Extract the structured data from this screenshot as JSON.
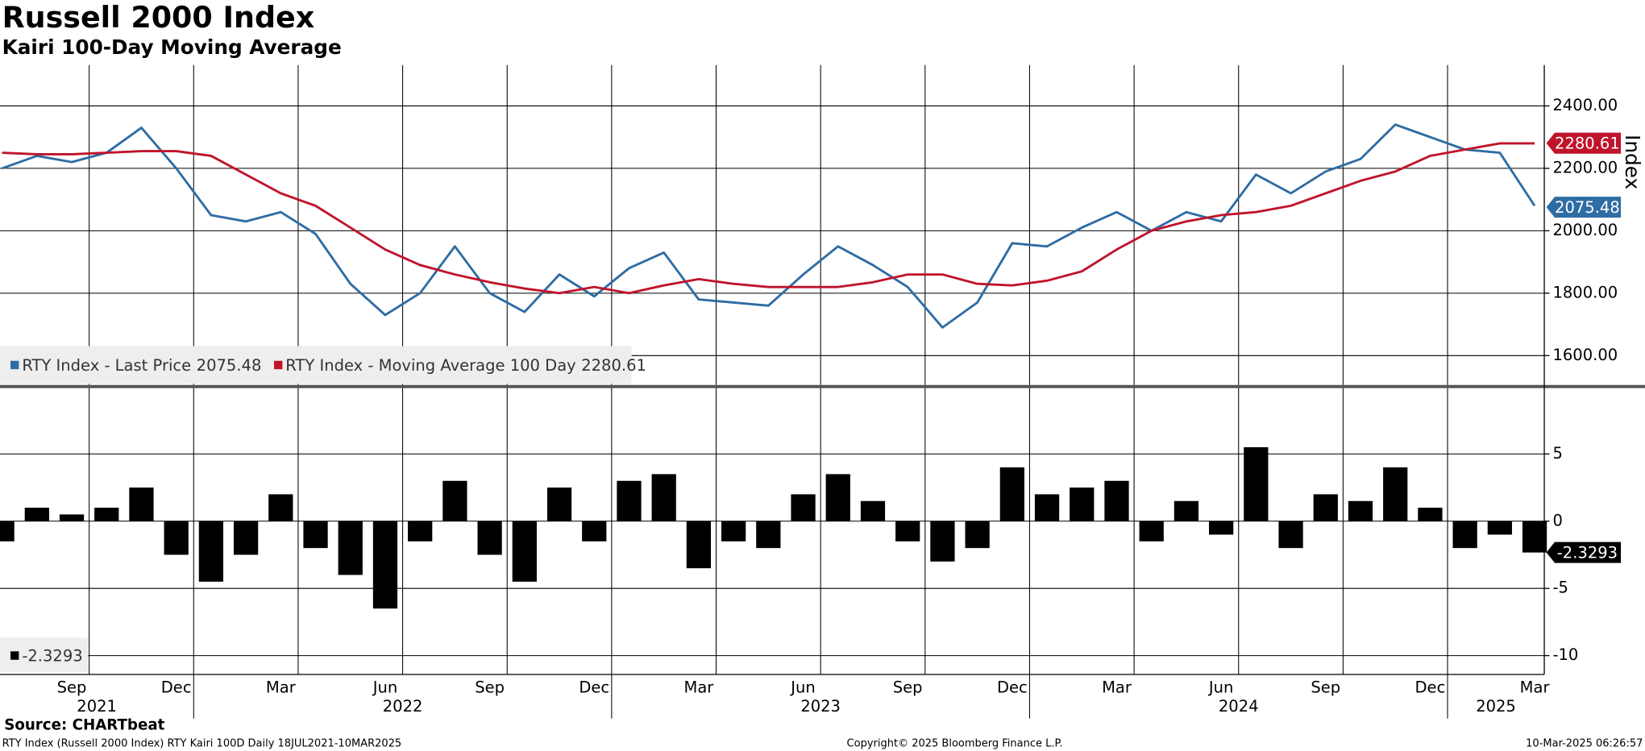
{
  "header": {
    "title": "Russell 2000 Index",
    "subtitle": "Kairi 100-Day Moving Average"
  },
  "footer": {
    "source": "Source: CHARTbeat",
    "description": "RTY Index (Russell 2000 Index) RTY Kairi 100D  Daily 18JUL2021-10MAR2025",
    "copyright": "Copyright© 2025 Bloomberg Finance L.P.",
    "timestamp": "10-Mar-2025 06:26:57"
  },
  "chart_data": [
    {
      "type": "line",
      "y_label": "Index",
      "x": [
        "2021-07",
        "2021-08",
        "2021-09",
        "2021-10",
        "2021-11",
        "2021-12",
        "2022-01",
        "2022-02",
        "2022-03",
        "2022-04",
        "2022-05",
        "2022-06",
        "2022-07",
        "2022-08",
        "2022-09",
        "2022-10",
        "2022-11",
        "2022-12",
        "2023-01",
        "2023-02",
        "2023-03",
        "2023-04",
        "2023-05",
        "2023-06",
        "2023-07",
        "2023-08",
        "2023-09",
        "2023-10",
        "2023-11",
        "2023-12",
        "2024-01",
        "2024-02",
        "2024-03",
        "2024-04",
        "2024-05",
        "2024-06",
        "2024-07",
        "2024-08",
        "2024-09",
        "2024-10",
        "2024-11",
        "2024-12",
        "2025-01",
        "2025-02",
        "2025-03"
      ],
      "series": [
        {
          "name": "RTY Index - Last Price",
          "color": "#2e6ca4",
          "last": 2075.48,
          "values": [
            2200,
            2240,
            2220,
            2250,
            2330,
            2200,
            2050,
            2030,
            2060,
            1990,
            1830,
            1730,
            1800,
            1950,
            1800,
            1740,
            1860,
            1790,
            1880,
            1930,
            1780,
            1770,
            1760,
            1860,
            1950,
            1890,
            1820,
            1690,
            1770,
            1960,
            1950,
            2010,
            2060,
            2000,
            2060,
            2030,
            2180,
            2120,
            2190,
            2230,
            2340,
            2300,
            2260,
            2250,
            2080
          ]
        },
        {
          "name": "RTY Index - Moving Average 100 Day",
          "color": "#c0142b",
          "last": 2280.61,
          "values": [
            2250,
            2245,
            2245,
            2250,
            2255,
            2255,
            2240,
            2180,
            2120,
            2080,
            2010,
            1940,
            1890,
            1860,
            1835,
            1815,
            1800,
            1820,
            1800,
            1825,
            1845,
            1830,
            1820,
            1820,
            1820,
            1835,
            1860,
            1860,
            1830,
            1825,
            1840,
            1870,
            1940,
            2000,
            2030,
            2050,
            2060,
            2080,
            2120,
            2160,
            2190,
            2240,
            2260,
            2280,
            2280
          ]
        }
      ],
      "ylim": [
        1506,
        2531
      ],
      "yticks": [
        {
          "value": 1600,
          "label": "1600.00"
        },
        {
          "value": 1800,
          "label": "1800.00"
        },
        {
          "value": 2000,
          "label": "2000.00"
        },
        {
          "value": 2200,
          "label": "2200.00"
        },
        {
          "value": 2400,
          "label": "2400.00"
        }
      ],
      "grid": true,
      "legend": "bottom-left"
    },
    {
      "type": "bar",
      "color": "#000000",
      "last": -2.3293,
      "x": [
        "2021-07",
        "2021-08",
        "2021-09",
        "2021-10",
        "2021-11",
        "2021-12",
        "2022-01",
        "2022-02",
        "2022-03",
        "2022-04",
        "2022-05",
        "2022-06",
        "2022-07",
        "2022-08",
        "2022-09",
        "2022-10",
        "2022-11",
        "2022-12",
        "2023-01",
        "2023-02",
        "2023-03",
        "2023-04",
        "2023-05",
        "2023-06",
        "2023-07",
        "2023-08",
        "2023-09",
        "2023-10",
        "2023-11",
        "2023-12",
        "2024-01",
        "2024-02",
        "2024-03",
        "2024-04",
        "2024-05",
        "2024-06",
        "2024-07",
        "2024-08",
        "2024-09",
        "2024-10",
        "2024-11",
        "2024-12",
        "2025-01",
        "2025-02",
        "2025-03"
      ],
      "values": [
        -1.5,
        1,
        0.5,
        1,
        2.5,
        -2.5,
        -4.5,
        -2.5,
        2,
        -2,
        -4,
        -6.5,
        -1.5,
        3,
        -2.5,
        -4.5,
        2.5,
        -1.5,
        3,
        3.5,
        -3.5,
        -1.5,
        -2,
        2,
        3.5,
        1.5,
        -1.5,
        -3,
        -2,
        4,
        2,
        2.5,
        3,
        -1.5,
        1.5,
        -1,
        5.5,
        -2,
        2,
        1.5,
        4,
        1,
        -2,
        -1,
        -2.3293
      ],
      "ylim": [
        -11.4,
        9.9
      ],
      "yticks": [
        -10,
        -5,
        0,
        5
      ],
      "xticks": [
        {
          "value": "2021-09",
          "label": "Sep"
        },
        {
          "value": "2021-12",
          "label": "Dec"
        },
        {
          "value": "2022-03",
          "label": "Mar"
        },
        {
          "value": "2022-06",
          "label": "Jun"
        },
        {
          "value": "2022-09",
          "label": "Sep"
        },
        {
          "value": "2022-12",
          "label": "Dec"
        },
        {
          "value": "2023-03",
          "label": "Mar"
        },
        {
          "value": "2023-06",
          "label": "Jun"
        },
        {
          "value": "2023-09",
          "label": "Sep"
        },
        {
          "value": "2023-12",
          "label": "Dec"
        },
        {
          "value": "2024-03",
          "label": "Mar"
        },
        {
          "value": "2024-06",
          "label": "Jun"
        },
        {
          "value": "2024-09",
          "label": "Sep"
        },
        {
          "value": "2024-12",
          "label": "Dec"
        },
        {
          "value": "2025-03",
          "label": "Mar"
        }
      ],
      "years": [
        2021,
        2022,
        2023,
        2024,
        2025
      ],
      "grid": true,
      "legend": "bottom-left"
    }
  ]
}
